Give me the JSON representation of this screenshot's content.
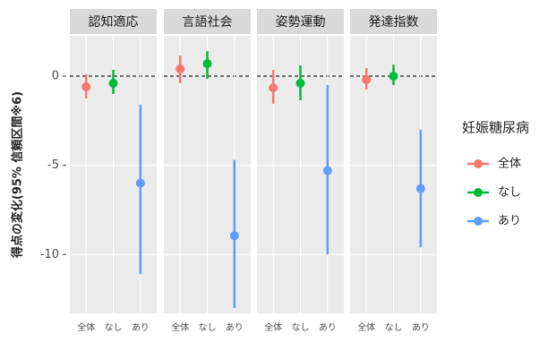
{
  "chart_data": {
    "type": "pointrange",
    "y_label": "得点の変化(95% 信頼区間※6)",
    "legend_title": "妊娠糖尿病",
    "categories": [
      "全体",
      "なし",
      "あり"
    ],
    "groups": [
      {
        "name": "全体",
        "color": "#F8766D"
      },
      {
        "name": "なし",
        "color": "#00BA38"
      },
      {
        "name": "あり",
        "color": "#619CFF"
      }
    ],
    "facets": [
      {
        "title": "認知適応",
        "values": [
          -0.6,
          -0.4,
          -6.0
        ],
        "lower": [
          -1.25,
          -1.0,
          -11.1
        ],
        "upper": [
          0.1,
          0.35,
          -1.6
        ]
      },
      {
        "title": "言語社会",
        "values": [
          0.4,
          0.7,
          -8.95
        ],
        "lower": [
          -0.4,
          -0.15,
          -13.0
        ],
        "upper": [
          1.15,
          1.4,
          -4.7
        ]
      },
      {
        "title": "姿勢運動",
        "values": [
          -0.65,
          -0.4,
          -5.3
        ],
        "lower": [
          -1.55,
          -1.35,
          -10.0
        ],
        "upper": [
          0.35,
          0.6,
          -0.5
        ]
      },
      {
        "title": "発達指数",
        "values": [
          -0.2,
          0.0,
          -6.3
        ],
        "lower": [
          -0.75,
          -0.5,
          -9.6
        ],
        "upper": [
          0.45,
          0.65,
          -3.0
        ]
      }
    ],
    "hline": 0,
    "ylim": [
      -13.3,
      2.26
    ],
    "yticks": [
      -10,
      -5,
      0
    ],
    "grid": true
  }
}
